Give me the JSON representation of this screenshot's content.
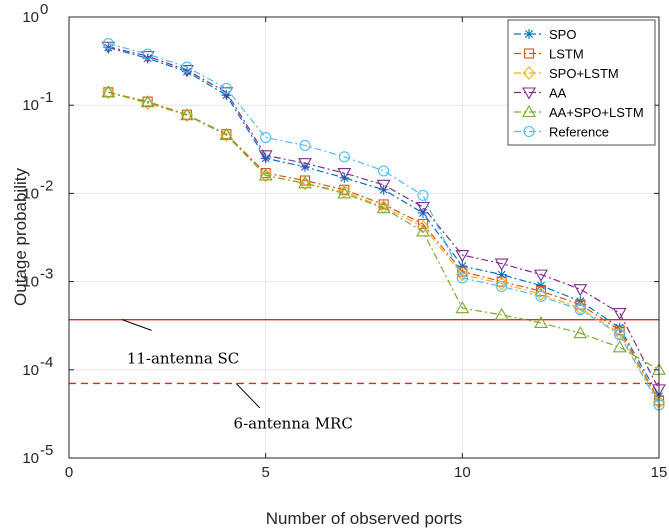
{
  "chart_data": {
    "type": "line",
    "xlabel": "Number of observed ports",
    "ylabel": "Outage probability",
    "xlim": [
      0,
      15
    ],
    "ylim": [
      1e-05,
      1
    ],
    "yscale": "log",
    "grid": true,
    "legend_position": "top-right",
    "x_ticks": [
      {
        "value": 0,
        "label": "0"
      },
      {
        "value": 5,
        "label": "5"
      },
      {
        "value": 10,
        "label": "10"
      },
      {
        "value": 15,
        "label": "15"
      }
    ],
    "y_ticks": [
      {
        "value": 1e-05,
        "base": "10",
        "exp": "-5"
      },
      {
        "value": 0.0001,
        "base": "10",
        "exp": "-4"
      },
      {
        "value": 0.001,
        "base": "10",
        "exp": "-3"
      },
      {
        "value": 0.01,
        "base": "10",
        "exp": "-2"
      },
      {
        "value": 0.1,
        "base": "10",
        "exp": "-1"
      },
      {
        "value": 1,
        "base": "10",
        "exp": "0"
      }
    ],
    "x": [
      1,
      2,
      3,
      4,
      5,
      6,
      7,
      8,
      9,
      10,
      11,
      12,
      13,
      14,
      15
    ],
    "series": [
      {
        "name": "SPO",
        "color": "#0072BD",
        "marker": "asterisk",
        "values": [
          0.45,
          0.34,
          0.24,
          0.13,
          0.025,
          0.02,
          0.015,
          0.011,
          0.006,
          0.0015,
          0.0012,
          0.0009,
          0.0006,
          0.0003,
          5e-05
        ]
      },
      {
        "name": "LSTM",
        "color": "#D95319",
        "marker": "square",
        "values": [
          0.14,
          0.11,
          0.078,
          0.047,
          0.017,
          0.014,
          0.011,
          0.0075,
          0.0045,
          0.0013,
          0.001,
          0.00078,
          0.00055,
          0.00028,
          4.5e-05
        ]
      },
      {
        "name": "SPO+LSTM",
        "color": "#EDB120",
        "marker": "diamond",
        "values": [
          0.14,
          0.105,
          0.077,
          0.046,
          0.016,
          0.013,
          0.0105,
          0.007,
          0.0042,
          0.0012,
          0.00095,
          0.00072,
          0.0005,
          0.00026,
          4.3e-05
        ]
      },
      {
        "name": "AA",
        "color": "#7E2F8E",
        "marker": "triangle-down",
        "values": [
          0.46,
          0.36,
          0.25,
          0.14,
          0.027,
          0.022,
          0.017,
          0.0125,
          0.007,
          0.002,
          0.0016,
          0.0012,
          0.00082,
          0.00044,
          6e-05
        ]
      },
      {
        "name": "AA+SPO+LSTM",
        "color": "#77AC30",
        "marker": "triangle-up",
        "values": [
          0.14,
          0.108,
          0.077,
          0.046,
          0.016,
          0.013,
          0.01,
          0.0068,
          0.0037,
          0.0005,
          0.00042,
          0.00034,
          0.00026,
          0.00018,
          0.0001
        ]
      },
      {
        "name": "Reference",
        "color": "#4DBEEE",
        "marker": "circle",
        "values": [
          0.5,
          0.38,
          0.27,
          0.155,
          0.043,
          0.035,
          0.026,
          0.018,
          0.0095,
          0.0011,
          0.00088,
          0.00068,
          0.00048,
          0.00025,
          4e-05
        ]
      }
    ],
    "reference_lines": [
      {
        "label": "11-antenna SC",
        "value": 0.00037,
        "style": "solid",
        "color": "#E8231E",
        "annotation_x": 2.9,
        "annotation_y": 0.000118,
        "pointer_from": [
          2.1,
          0.00028
        ],
        "pointer_to": [
          1.35,
          0.00037
        ]
      },
      {
        "label": "6-antenna MRC",
        "value": 7e-05,
        "style": "dashed",
        "color": "#E8231E",
        "annotation_x": 5.7,
        "annotation_y": 2.15e-05,
        "pointer_from": [
          4.85,
          3.7e-05
        ],
        "pointer_to": [
          4.25,
          7e-05
        ]
      }
    ]
  }
}
